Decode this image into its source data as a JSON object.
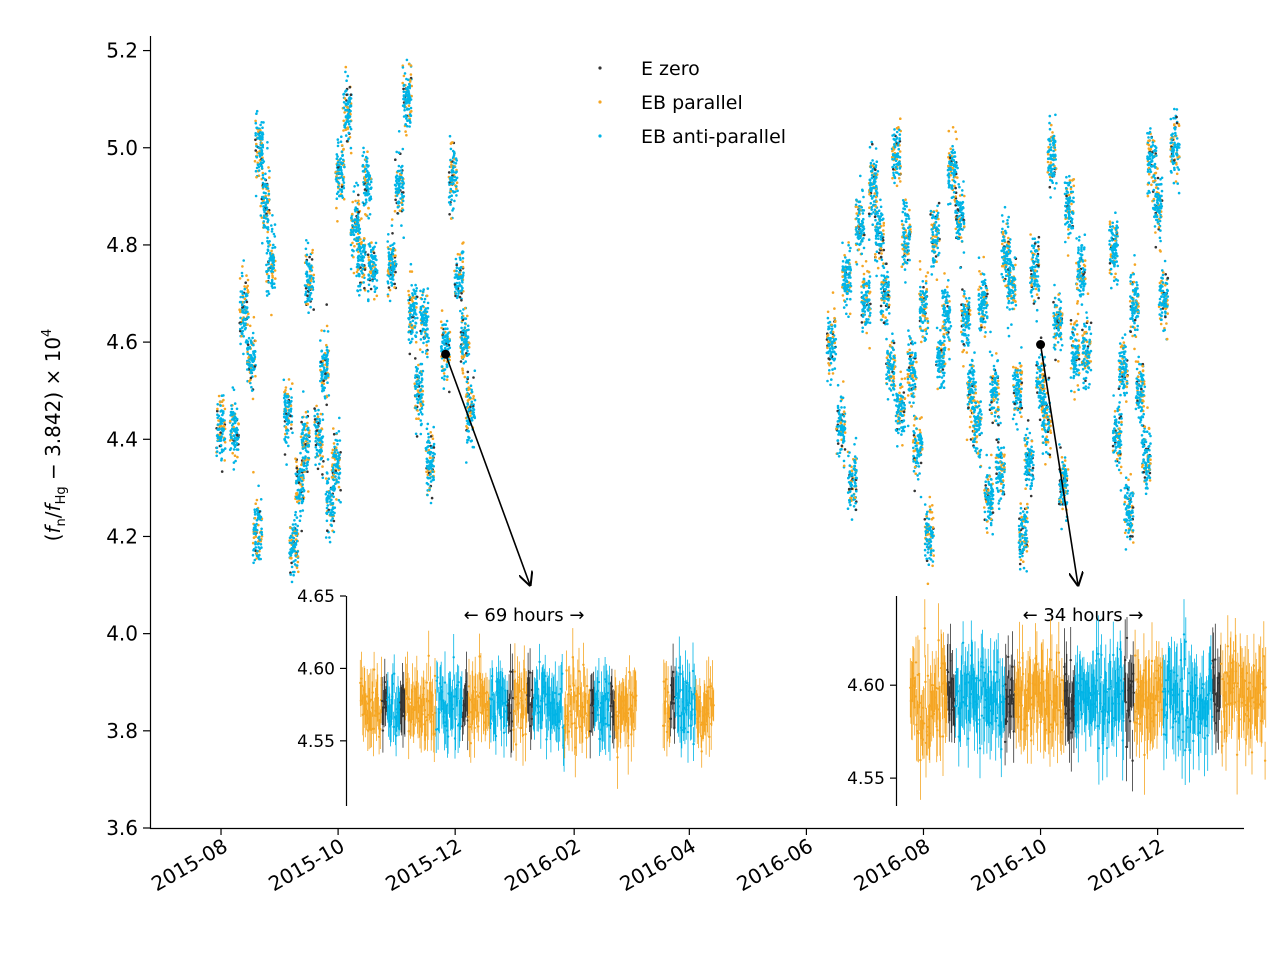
{
  "chart_data": {
    "type": "scatter",
    "ylabel": "(f_n/f_Hg − 3.842) × 10^4",
    "ylabel_parts": {
      "open": "(",
      "f1": "f",
      "sub1": "n",
      "slash": "/",
      "f2": "f",
      "sub2": "Hg",
      "rest": " − 3.842) × 10",
      "sup": "4"
    },
    "xlabel": "",
    "ylim": [
      3.6,
      5.23
    ],
    "xlim": [
      "2015-06-25",
      "2017-01-15"
    ],
    "yticks": [
      "3.6",
      "3.8",
      "4.0",
      "4.2",
      "4.4",
      "4.6",
      "4.8",
      "5.0",
      "5.2"
    ],
    "xticks": [
      "2015-08",
      "2015-10",
      "2015-12",
      "2016-02",
      "2016-04",
      "2016-06",
      "2016-08",
      "2016-10",
      "2016-12"
    ],
    "legend": {
      "placement": "top-center",
      "entries": [
        "E zero",
        "EB parallel",
        "EB anti-parallel"
      ]
    },
    "series": [
      {
        "name": "E zero",
        "color": "#333333"
      },
      {
        "name": "EB parallel",
        "color": "#f5a623"
      },
      {
        "name": "EB anti-parallel",
        "color": "#00b4e6"
      }
    ],
    "runs": [
      [
        "2015-08-01",
        4.43
      ],
      [
        "2015-08-08",
        4.42
      ],
      [
        "2015-08-13",
        4.67
      ],
      [
        "2015-08-17",
        4.56
      ],
      [
        "2015-08-20",
        4.21
      ],
      [
        "2015-08-21",
        5.0
      ],
      [
        "2015-08-24",
        4.9
      ],
      [
        "2015-08-27",
        4.76
      ],
      [
        "2015-09-05",
        4.45
      ],
      [
        "2015-09-08",
        4.18
      ],
      [
        "2015-09-11",
        4.3
      ],
      [
        "2015-09-14",
        4.39
      ],
      [
        "2015-09-16",
        4.73
      ],
      [
        "2015-09-21",
        4.4
      ],
      [
        "2015-09-24",
        4.54
      ],
      [
        "2015-09-27",
        4.27
      ],
      [
        "2015-09-30",
        4.35
      ],
      [
        "2015-10-02",
        4.95
      ],
      [
        "2015-10-06",
        5.07
      ],
      [
        "2015-10-10",
        4.84
      ],
      [
        "2015-10-13",
        4.77
      ],
      [
        "2015-10-16",
        4.93
      ],
      [
        "2015-10-19",
        4.75
      ],
      [
        "2015-10-29",
        4.76
      ],
      [
        "2015-11-02",
        4.92
      ],
      [
        "2015-11-06",
        5.1
      ],
      [
        "2015-11-09",
        4.66
      ],
      [
        "2015-11-12",
        4.5
      ],
      [
        "2015-11-15",
        4.64
      ],
      [
        "2015-11-18",
        4.35
      ],
      [
        "2015-11-26",
        4.58
      ],
      [
        "2015-11-30",
        4.94
      ],
      [
        "2015-12-03",
        4.73
      ],
      [
        "2015-12-06",
        4.6
      ],
      [
        "2015-12-09",
        4.46
      ],
      [
        "2016-06-14",
        4.6
      ],
      [
        "2016-06-19",
        4.43
      ],
      [
        "2016-06-22",
        4.73
      ],
      [
        "2016-06-25",
        4.31
      ],
      [
        "2016-06-29",
        4.84
      ],
      [
        "2016-07-02",
        4.69
      ],
      [
        "2016-07-06",
        4.92
      ],
      [
        "2016-07-09",
        4.83
      ],
      [
        "2016-07-12",
        4.7
      ],
      [
        "2016-07-15",
        4.55
      ],
      [
        "2016-07-18",
        4.99
      ],
      [
        "2016-07-20",
        4.46
      ],
      [
        "2016-07-23",
        4.82
      ],
      [
        "2016-07-26",
        4.54
      ],
      [
        "2016-07-29",
        4.38
      ],
      [
        "2016-08-01",
        4.67
      ],
      [
        "2016-08-04",
        4.2
      ],
      [
        "2016-08-07",
        4.82
      ],
      [
        "2016-08-10",
        4.56
      ],
      [
        "2016-08-13",
        4.66
      ],
      [
        "2016-08-16",
        4.95
      ],
      [
        "2016-08-20",
        4.86
      ],
      [
        "2016-08-23",
        4.64
      ],
      [
        "2016-08-26",
        4.5
      ],
      [
        "2016-08-29",
        4.43
      ],
      [
        "2016-09-01",
        4.68
      ],
      [
        "2016-09-04",
        4.28
      ],
      [
        "2016-09-07",
        4.5
      ],
      [
        "2016-09-10",
        4.34
      ],
      [
        "2016-09-13",
        4.79
      ],
      [
        "2016-09-16",
        4.72
      ],
      [
        "2016-09-19",
        4.5
      ],
      [
        "2016-09-22",
        4.21
      ],
      [
        "2016-09-25",
        4.36
      ],
      [
        "2016-09-28",
        4.75
      ],
      [
        "2016-10-01",
        4.52
      ],
      [
        "2016-10-04",
        4.44
      ],
      [
        "2016-10-07",
        4.98
      ],
      [
        "2016-10-10",
        4.64
      ],
      [
        "2016-10-13",
        4.31
      ],
      [
        "2016-10-16",
        4.88
      ],
      [
        "2016-10-19",
        4.57
      ],
      [
        "2016-10-22",
        4.74
      ],
      [
        "2016-10-25",
        4.58
      ],
      [
        "2016-11-08",
        4.8
      ],
      [
        "2016-11-10",
        4.4
      ],
      [
        "2016-11-13",
        4.55
      ],
      [
        "2016-11-16",
        4.25
      ],
      [
        "2016-11-19",
        4.68
      ],
      [
        "2016-11-22",
        4.5
      ],
      [
        "2016-11-25",
        4.36
      ],
      [
        "2016-11-28",
        4.97
      ],
      [
        "2016-12-01",
        4.88
      ],
      [
        "2016-12-04",
        4.69
      ],
      [
        "2016-12-10",
        5.0
      ]
    ],
    "insets": [
      {
        "annotation": "←  69 hours  →",
        "anchor": {
          "x": "2015-11-26",
          "y": 4.575
        },
        "ylim": [
          4.505,
          4.65
        ],
        "yticks": [
          "4.55",
          "4.60",
          "4.65"
        ],
        "mean": 4.575,
        "segments": [
          {
            "series": "EB parallel",
            "duration": 3.0
          },
          {
            "series": "E zero",
            "duration": 0.7
          },
          {
            "series": "EB anti-parallel",
            "duration": 1.8
          },
          {
            "series": "E zero",
            "duration": 0.7
          },
          {
            "series": "EB parallel",
            "duration": 4.2
          },
          {
            "series": "EB anti-parallel",
            "duration": 3.6
          },
          {
            "series": "E zero",
            "duration": 0.8
          },
          {
            "series": "EB parallel",
            "duration": 3.0
          },
          {
            "series": "EB anti-parallel",
            "duration": 2.4
          },
          {
            "series": "E zero",
            "duration": 0.8
          },
          {
            "series": "EB parallel",
            "duration": 1.9
          },
          {
            "series": "E zero",
            "duration": 0.8
          },
          {
            "series": "EB anti-parallel",
            "duration": 4.3
          },
          {
            "series": "EB parallel",
            "duration": 3.5
          },
          {
            "series": "E zero",
            "duration": 0.6
          },
          {
            "series": "EB anti-parallel",
            "duration": 2.2
          },
          {
            "series": "E zero",
            "duration": 0.6
          },
          {
            "series": "EB parallel",
            "duration": 3.0
          },
          {
            "series": "gap",
            "duration": 3.6
          },
          {
            "series": "EB parallel",
            "duration": 1.0
          },
          {
            "series": "E zero",
            "duration": 0.7
          },
          {
            "series": "EB anti-parallel",
            "duration": 2.8
          },
          {
            "series": "EB parallel",
            "duration": 2.5
          }
        ]
      },
      {
        "annotation": "←  34 hours  →",
        "anchor": {
          "x": "2016-10-01",
          "y": 4.595
        },
        "ylim": [
          4.535,
          4.648
        ],
        "yticks": [
          "4.55",
          "4.60"
        ],
        "mean": 4.593,
        "segments": [
          {
            "series": "EB parallel",
            "duration": 4.5
          },
          {
            "series": "E zero",
            "duration": 1.0
          },
          {
            "series": "EB anti-parallel",
            "duration": 6.0
          },
          {
            "series": "E zero",
            "duration": 1.2
          },
          {
            "series": "EB parallel",
            "duration": 6.0
          },
          {
            "series": "E zero",
            "duration": 1.3
          },
          {
            "series": "EB anti-parallel",
            "duration": 6.0
          },
          {
            "series": "E zero",
            "duration": 1.2
          },
          {
            "series": "EB parallel",
            "duration": 3.5
          },
          {
            "series": "EB anti-parallel",
            "duration": 6.0
          },
          {
            "series": "E zero",
            "duration": 1.0
          },
          {
            "series": "EB parallel",
            "duration": 5.5
          }
        ]
      }
    ]
  }
}
